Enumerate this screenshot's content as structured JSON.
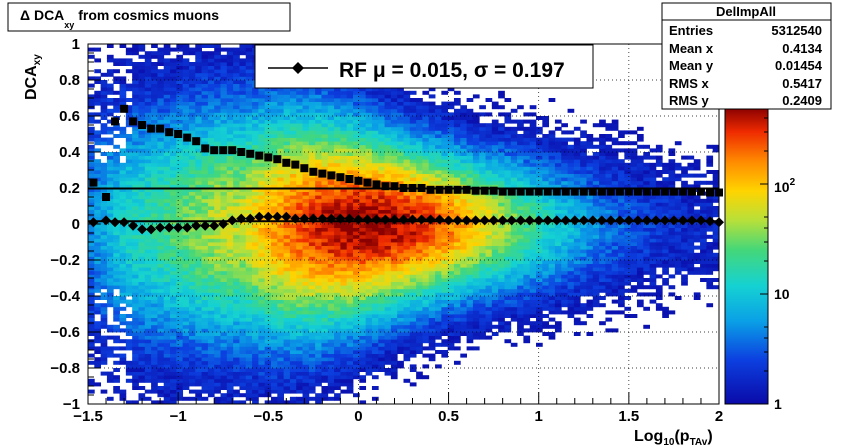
{
  "title": {
    "prefix": "Δ DCA",
    "sub": "xy",
    "suffix": " from cosmics muons"
  },
  "stats": {
    "name": "DelImpAll",
    "rows": [
      {
        "label": "Entries",
        "value": "5312540"
      },
      {
        "label": "Mean x",
        "value": "0.4134"
      },
      {
        "label": "Mean y",
        "value": "0.01454"
      },
      {
        "label": "RMS x",
        "value": "0.5417"
      },
      {
        "label": "RMS y",
        "value": "0.2409"
      }
    ]
  },
  "legend": {
    "text": "RF μ =  0.015, σ =   0.197"
  },
  "axes": {
    "x_label_main": "Log",
    "x_label_sub1": "10",
    "x_label_mid": "(p",
    "x_label_sub2": "TAv",
    "x_label_end": ")",
    "y_label_main": "DCA",
    "y_label_sub": "xy",
    "x_ticks": [
      "−1.5",
      "−1",
      "−0.5",
      "0",
      "0.5",
      "1",
      "1.5",
      "2"
    ],
    "y_ticks": [
      "−1",
      "−0.8",
      "−0.6",
      "−0.4",
      "−0.2",
      "0",
      "0.2",
      "0.4",
      "0.6",
      "0.8",
      "1"
    ],
    "z_ticks": [
      "1",
      "10",
      "10"
    ],
    "z_exp": "2"
  },
  "colors": {
    "marker": "#000000",
    "frame": "#000000"
  },
  "chart_data": {
    "type": "heatmap",
    "xlim": [
      -1.5,
      2.0
    ],
    "ylim": [
      -1.0,
      1.0
    ],
    "z_scale": "log",
    "zlim": [
      1,
      1000
    ],
    "series": [
      {
        "kind": "sigma",
        "x": [
          -1.47,
          -1.4,
          -1.35,
          -1.3,
          -1.25,
          -1.2,
          -1.15,
          -1.1,
          -1.05,
          -1.0,
          -0.95,
          -0.9,
          -0.85,
          -0.8,
          -0.75,
          -0.7,
          -0.65,
          -0.6,
          -0.55,
          -0.5,
          -0.45,
          -0.4,
          -0.35,
          -0.3,
          -0.25,
          -0.2,
          -0.15,
          -0.1,
          -0.05,
          0.0,
          0.05,
          0.1,
          0.15,
          0.2,
          0.25,
          0.3,
          0.35,
          0.4,
          0.45,
          0.5,
          0.55,
          0.6,
          0.65,
          0.7,
          0.75,
          0.8,
          0.85,
          0.9,
          0.95,
          1.0,
          1.05,
          1.1,
          1.15,
          1.2,
          1.25,
          1.3,
          1.35,
          1.4,
          1.45,
          1.5,
          1.55,
          1.6,
          1.65,
          1.7,
          1.75,
          1.8,
          1.85,
          1.9,
          1.95,
          2.0
        ],
        "y": [
          0.23,
          0.15,
          0.57,
          0.64,
          0.57,
          0.55,
          0.53,
          0.53,
          0.51,
          0.5,
          0.48,
          0.46,
          0.42,
          0.41,
          0.41,
          0.41,
          0.4,
          0.39,
          0.38,
          0.37,
          0.36,
          0.34,
          0.33,
          0.31,
          0.29,
          0.28,
          0.27,
          0.26,
          0.25,
          0.24,
          0.23,
          0.22,
          0.21,
          0.21,
          0.2,
          0.2,
          0.2,
          0.19,
          0.19,
          0.19,
          0.19,
          0.19,
          0.185,
          0.185,
          0.185,
          0.18,
          0.18,
          0.18,
          0.18,
          0.18,
          0.18,
          0.18,
          0.18,
          0.18,
          0.18,
          0.18,
          0.18,
          0.18,
          0.18,
          0.18,
          0.18,
          0.18,
          0.18,
          0.18,
          0.18,
          0.18,
          0.18,
          0.18,
          0.175,
          0.175
        ]
      },
      {
        "kind": "mean",
        "x": [
          -1.47,
          -1.4,
          -1.35,
          -1.3,
          -1.25,
          -1.2,
          -1.15,
          -1.1,
          -1.05,
          -1.0,
          -0.95,
          -0.9,
          -0.85,
          -0.8,
          -0.75,
          -0.7,
          -0.65,
          -0.6,
          -0.55,
          -0.5,
          -0.45,
          -0.4,
          -0.35,
          -0.3,
          -0.25,
          -0.2,
          -0.15,
          -0.1,
          -0.05,
          0.0,
          0.05,
          0.1,
          0.15,
          0.2,
          0.25,
          0.3,
          0.35,
          0.4,
          0.45,
          0.5,
          0.55,
          0.6,
          0.65,
          0.7,
          0.75,
          0.8,
          0.85,
          0.9,
          0.95,
          1.0,
          1.05,
          1.1,
          1.15,
          1.2,
          1.25,
          1.3,
          1.35,
          1.4,
          1.45,
          1.5,
          1.55,
          1.6,
          1.65,
          1.7,
          1.75,
          1.8,
          1.85,
          1.9,
          1.95,
          2.0
        ],
        "y": [
          0.01,
          0.02,
          0.01,
          0.01,
          -0.01,
          -0.03,
          -0.03,
          -0.02,
          -0.02,
          -0.02,
          -0.02,
          -0.01,
          -0.01,
          -0.01,
          0.0,
          0.02,
          0.03,
          0.03,
          0.04,
          0.04,
          0.04,
          0.04,
          0.03,
          0.03,
          0.03,
          0.03,
          0.03,
          0.03,
          0.03,
          0.025,
          0.025,
          0.025,
          0.025,
          0.025,
          0.025,
          0.025,
          0.025,
          0.025,
          0.025,
          0.02,
          0.02,
          0.02,
          0.02,
          0.02,
          0.02,
          0.02,
          0.02,
          0.02,
          0.02,
          0.02,
          0.02,
          0.02,
          0.02,
          0.02,
          0.02,
          0.02,
          0.02,
          0.02,
          0.02,
          0.02,
          0.02,
          0.02,
          0.02,
          0.02,
          0.02,
          0.02,
          0.02,
          0.02,
          0.015,
          0.01
        ]
      }
    ],
    "reference_lines": {
      "mu": 0.015,
      "sigma": 0.197
    }
  }
}
